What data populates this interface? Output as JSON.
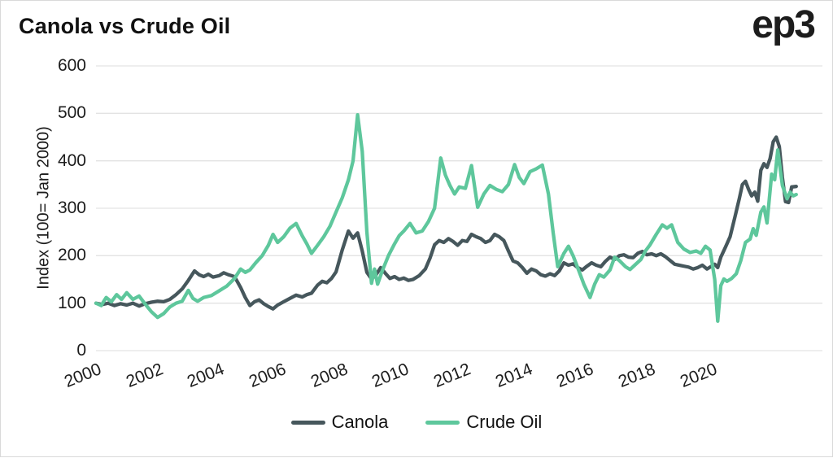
{
  "header": {
    "title": "Canola vs Crude Oil",
    "logo": "ep3"
  },
  "colors": {
    "canola": "#46575c",
    "crude_oil": "#5ec79c",
    "grid": "#e3e3e3",
    "text": "#1c1c1c",
    "background": "#ffffff"
  },
  "chart_data": {
    "type": "line",
    "title": "Canola vs Crude Oil",
    "xlabel": "",
    "ylabel": "Index (100= Jan 2000)",
    "ylim": [
      0,
      600
    ],
    "xlim": [
      2000,
      2023.6
    ],
    "yticks": [
      0,
      100,
      200,
      300,
      400,
      500,
      600
    ],
    "xticks": [
      2000,
      2002,
      2004,
      2006,
      2008,
      2010,
      2012,
      2014,
      2016,
      2018,
      2020
    ],
    "grid": "horizontal",
    "legend_position": "bottom",
    "series": [
      {
        "name": "Canola",
        "color": "#46575c",
        "points": [
          [
            2000.0,
            100
          ],
          [
            2000.2,
            97
          ],
          [
            2000.4,
            100
          ],
          [
            2000.6,
            95
          ],
          [
            2000.8,
            99
          ],
          [
            2001.0,
            96
          ],
          [
            2001.2,
            100
          ],
          [
            2001.4,
            94
          ],
          [
            2001.6,
            99
          ],
          [
            2001.8,
            102
          ],
          [
            2002.0,
            104
          ],
          [
            2002.2,
            103
          ],
          [
            2002.4,
            108
          ],
          [
            2002.6,
            118
          ],
          [
            2002.8,
            130
          ],
          [
            2003.0,
            148
          ],
          [
            2003.2,
            168
          ],
          [
            2003.35,
            160
          ],
          [
            2003.5,
            156
          ],
          [
            2003.65,
            161
          ],
          [
            2003.8,
            155
          ],
          [
            2004.0,
            158
          ],
          [
            2004.15,
            164
          ],
          [
            2004.3,
            160
          ],
          [
            2004.5,
            156
          ],
          [
            2004.7,
            133
          ],
          [
            2004.85,
            112
          ],
          [
            2005.0,
            95
          ],
          [
            2005.15,
            103
          ],
          [
            2005.3,
            107
          ],
          [
            2005.45,
            99
          ],
          [
            2005.6,
            93
          ],
          [
            2005.75,
            88
          ],
          [
            2005.9,
            96
          ],
          [
            2006.1,
            103
          ],
          [
            2006.3,
            110
          ],
          [
            2006.5,
            117
          ],
          [
            2006.7,
            113
          ],
          [
            2006.85,
            118
          ],
          [
            2007.0,
            121
          ],
          [
            2007.2,
            138
          ],
          [
            2007.35,
            146
          ],
          [
            2007.5,
            143
          ],
          [
            2007.65,
            152
          ],
          [
            2007.8,
            166
          ],
          [
            2008.0,
            212
          ],
          [
            2008.2,
            252
          ],
          [
            2008.35,
            237
          ],
          [
            2008.5,
            248
          ],
          [
            2008.65,
            210
          ],
          [
            2008.8,
            165
          ],
          [
            2008.95,
            151
          ],
          [
            2009.1,
            160
          ],
          [
            2009.25,
            175
          ],
          [
            2009.4,
            163
          ],
          [
            2009.55,
            152
          ],
          [
            2009.7,
            156
          ],
          [
            2009.85,
            150
          ],
          [
            2010.0,
            153
          ],
          [
            2010.15,
            148
          ],
          [
            2010.3,
            150
          ],
          [
            2010.5,
            158
          ],
          [
            2010.7,
            172
          ],
          [
            2010.85,
            195
          ],
          [
            2011.0,
            223
          ],
          [
            2011.15,
            232
          ],
          [
            2011.3,
            228
          ],
          [
            2011.45,
            236
          ],
          [
            2011.6,
            230
          ],
          [
            2011.75,
            222
          ],
          [
            2011.9,
            232
          ],
          [
            2012.05,
            230
          ],
          [
            2012.2,
            245
          ],
          [
            2012.35,
            240
          ],
          [
            2012.5,
            236
          ],
          [
            2012.65,
            228
          ],
          [
            2012.8,
            232
          ],
          [
            2012.95,
            245
          ],
          [
            2013.1,
            240
          ],
          [
            2013.25,
            232
          ],
          [
            2013.4,
            210
          ],
          [
            2013.55,
            189
          ],
          [
            2013.7,
            185
          ],
          [
            2013.85,
            175
          ],
          [
            2014.0,
            163
          ],
          [
            2014.15,
            172
          ],
          [
            2014.3,
            168
          ],
          [
            2014.45,
            160
          ],
          [
            2014.6,
            157
          ],
          [
            2014.75,
            162
          ],
          [
            2014.9,
            158
          ],
          [
            2015.05,
            168
          ],
          [
            2015.2,
            185
          ],
          [
            2015.35,
            180
          ],
          [
            2015.5,
            183
          ],
          [
            2015.65,
            175
          ],
          [
            2015.8,
            170
          ],
          [
            2015.95,
            178
          ],
          [
            2016.1,
            185
          ],
          [
            2016.25,
            180
          ],
          [
            2016.4,
            177
          ],
          [
            2016.55,
            188
          ],
          [
            2016.7,
            197
          ],
          [
            2016.85,
            192
          ],
          [
            2017.0,
            200
          ],
          [
            2017.15,
            202
          ],
          [
            2017.3,
            197
          ],
          [
            2017.45,
            196
          ],
          [
            2017.6,
            205
          ],
          [
            2017.75,
            209
          ],
          [
            2017.9,
            202
          ],
          [
            2018.05,
            204
          ],
          [
            2018.2,
            200
          ],
          [
            2018.35,
            204
          ],
          [
            2018.5,
            198
          ],
          [
            2018.65,
            190
          ],
          [
            2018.8,
            182
          ],
          [
            2018.95,
            180
          ],
          [
            2019.1,
            178
          ],
          [
            2019.25,
            176
          ],
          [
            2019.4,
            172
          ],
          [
            2019.55,
            175
          ],
          [
            2019.7,
            180
          ],
          [
            2019.85,
            172
          ],
          [
            2020.0,
            178
          ],
          [
            2020.1,
            182
          ],
          [
            2020.2,
            175
          ],
          [
            2020.3,
            197
          ],
          [
            2020.45,
            218
          ],
          [
            2020.6,
            240
          ],
          [
            2020.75,
            280
          ],
          [
            2020.9,
            320
          ],
          [
            2021.0,
            350
          ],
          [
            2021.1,
            357
          ],
          [
            2021.2,
            340
          ],
          [
            2021.3,
            326
          ],
          [
            2021.4,
            334
          ],
          [
            2021.5,
            315
          ],
          [
            2021.6,
            380
          ],
          [
            2021.7,
            394
          ],
          [
            2021.8,
            386
          ],
          [
            2021.9,
            405
          ],
          [
            2022.0,
            440
          ],
          [
            2022.1,
            450
          ],
          [
            2022.2,
            430
          ],
          [
            2022.3,
            365
          ],
          [
            2022.4,
            314
          ],
          [
            2022.5,
            312
          ],
          [
            2022.6,
            345
          ],
          [
            2022.75,
            346
          ]
        ]
      },
      {
        "name": "Crude Oil",
        "color": "#5ec79c",
        "points": [
          [
            2000.0,
            100
          ],
          [
            2000.17,
            95
          ],
          [
            2000.33,
            112
          ],
          [
            2000.5,
            103
          ],
          [
            2000.67,
            118
          ],
          [
            2000.83,
            108
          ],
          [
            2001.0,
            122
          ],
          [
            2001.2,
            108
          ],
          [
            2001.4,
            115
          ],
          [
            2001.6,
            98
          ],
          [
            2001.8,
            82
          ],
          [
            2002.0,
            70
          ],
          [
            2002.2,
            78
          ],
          [
            2002.4,
            92
          ],
          [
            2002.6,
            100
          ],
          [
            2002.8,
            104
          ],
          [
            2003.0,
            127
          ],
          [
            2003.15,
            110
          ],
          [
            2003.3,
            104
          ],
          [
            2003.5,
            112
          ],
          [
            2003.75,
            116
          ],
          [
            2004.0,
            126
          ],
          [
            2004.25,
            136
          ],
          [
            2004.5,
            152
          ],
          [
            2004.7,
            172
          ],
          [
            2004.85,
            165
          ],
          [
            2005.0,
            170
          ],
          [
            2005.2,
            186
          ],
          [
            2005.4,
            200
          ],
          [
            2005.6,
            222
          ],
          [
            2005.75,
            245
          ],
          [
            2005.9,
            228
          ],
          [
            2006.1,
            240
          ],
          [
            2006.3,
            258
          ],
          [
            2006.5,
            268
          ],
          [
            2006.7,
            242
          ],
          [
            2006.85,
            225
          ],
          [
            2007.0,
            205
          ],
          [
            2007.2,
            222
          ],
          [
            2007.4,
            240
          ],
          [
            2007.6,
            262
          ],
          [
            2007.8,
            292
          ],
          [
            2008.0,
            322
          ],
          [
            2008.2,
            360
          ],
          [
            2008.35,
            400
          ],
          [
            2008.5,
            497
          ],
          [
            2008.65,
            420
          ],
          [
            2008.8,
            250
          ],
          [
            2008.95,
            142
          ],
          [
            2009.05,
            172
          ],
          [
            2009.15,
            140
          ],
          [
            2009.3,
            168
          ],
          [
            2009.5,
            200
          ],
          [
            2009.7,
            225
          ],
          [
            2009.85,
            242
          ],
          [
            2010.0,
            252
          ],
          [
            2010.2,
            268
          ],
          [
            2010.4,
            248
          ],
          [
            2010.6,
            252
          ],
          [
            2010.8,
            272
          ],
          [
            2011.0,
            300
          ],
          [
            2011.2,
            406
          ],
          [
            2011.35,
            370
          ],
          [
            2011.5,
            348
          ],
          [
            2011.65,
            330
          ],
          [
            2011.8,
            345
          ],
          [
            2012.0,
            342
          ],
          [
            2012.2,
            390
          ],
          [
            2012.4,
            302
          ],
          [
            2012.6,
            330
          ],
          [
            2012.8,
            348
          ],
          [
            2013.0,
            340
          ],
          [
            2013.2,
            335
          ],
          [
            2013.4,
            350
          ],
          [
            2013.6,
            392
          ],
          [
            2013.75,
            365
          ],
          [
            2013.9,
            352
          ],
          [
            2014.1,
            377
          ],
          [
            2014.3,
            383
          ],
          [
            2014.5,
            391
          ],
          [
            2014.7,
            330
          ],
          [
            2014.85,
            250
          ],
          [
            2015.0,
            177
          ],
          [
            2015.2,
            205
          ],
          [
            2015.35,
            220
          ],
          [
            2015.5,
            200
          ],
          [
            2015.7,
            166
          ],
          [
            2015.85,
            140
          ],
          [
            2016.05,
            112
          ],
          [
            2016.2,
            140
          ],
          [
            2016.35,
            160
          ],
          [
            2016.5,
            155
          ],
          [
            2016.7,
            170
          ],
          [
            2016.85,
            197
          ],
          [
            2017.0,
            190
          ],
          [
            2017.2,
            177
          ],
          [
            2017.35,
            171
          ],
          [
            2017.5,
            180
          ],
          [
            2017.7,
            192
          ],
          [
            2017.85,
            210
          ],
          [
            2018.0,
            223
          ],
          [
            2018.2,
            245
          ],
          [
            2018.4,
            265
          ],
          [
            2018.55,
            258
          ],
          [
            2018.7,
            265
          ],
          [
            2018.9,
            228
          ],
          [
            2019.1,
            214
          ],
          [
            2019.3,
            207
          ],
          [
            2019.5,
            210
          ],
          [
            2019.65,
            205
          ],
          [
            2019.8,
            220
          ],
          [
            2019.95,
            212
          ],
          [
            2020.1,
            150
          ],
          [
            2020.2,
            62
          ],
          [
            2020.3,
            137
          ],
          [
            2020.4,
            151
          ],
          [
            2020.5,
            146
          ],
          [
            2020.65,
            152
          ],
          [
            2020.8,
            162
          ],
          [
            2020.95,
            190
          ],
          [
            2021.1,
            228
          ],
          [
            2021.25,
            235
          ],
          [
            2021.35,
            257
          ],
          [
            2021.45,
            243
          ],
          [
            2021.6,
            292
          ],
          [
            2021.7,
            303
          ],
          [
            2021.8,
            269
          ],
          [
            2021.95,
            372
          ],
          [
            2022.05,
            360
          ],
          [
            2022.15,
            423
          ],
          [
            2022.3,
            348
          ],
          [
            2022.45,
            320
          ],
          [
            2022.55,
            334
          ],
          [
            2022.65,
            326
          ],
          [
            2022.75,
            329
          ]
        ]
      }
    ]
  }
}
